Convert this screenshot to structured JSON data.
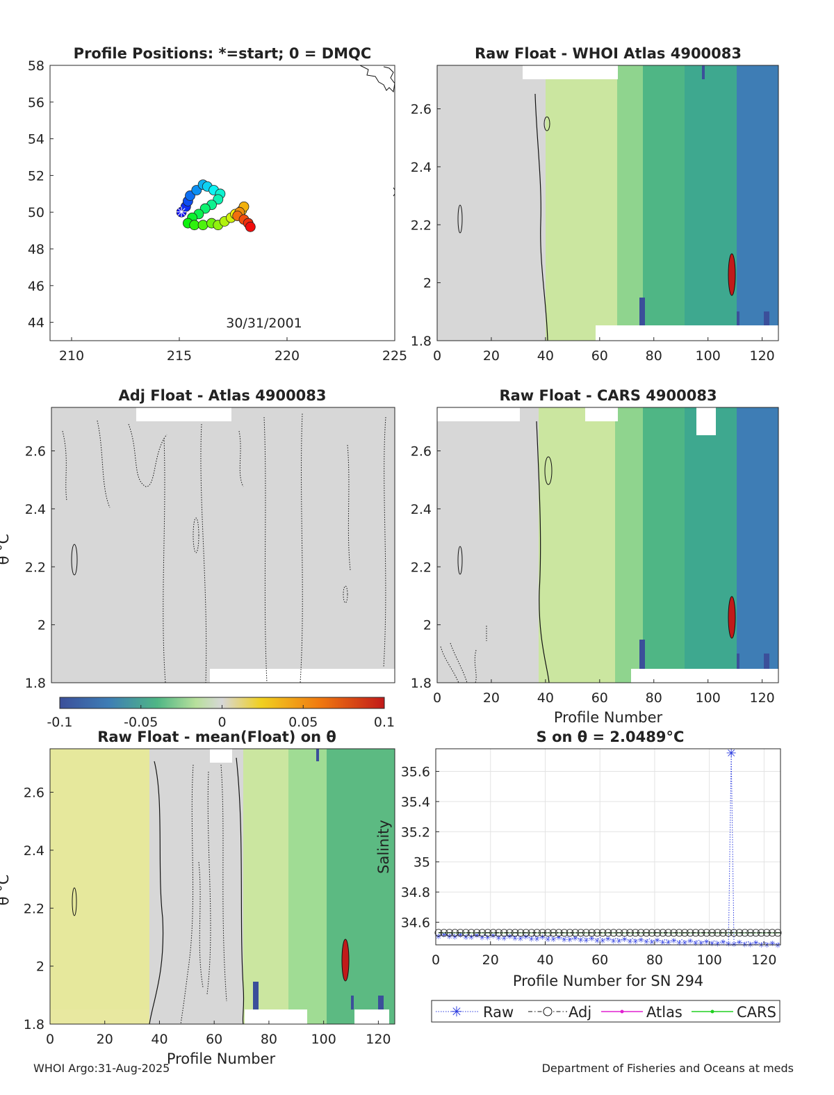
{
  "colors": {
    "gray_bg": "#d7d7d7",
    "light_green": "#cbe6a0",
    "mid_green": "#8fd48e",
    "green": "#4fb685",
    "blue": "#3e7db5",
    "dark_blue": "#3b4f9a",
    "pale_yellow": "#e6e89c",
    "red": "#c11a1a",
    "raw_line": "#2a3adf",
    "adj_line": "#111111",
    "atlas_line": "#e020d0",
    "cars_line": "#20d020"
  },
  "footer": {
    "left": "WHOI Argo:31-Aug-2025",
    "right": "Department of Fisheries and Oceans at meds"
  },
  "chart_data": [
    {
      "id": "positions",
      "type": "scatter",
      "title": "Profile Positions: *=start; 0 = DMQC",
      "annotation": "30/31/2001",
      "xlim": [
        209,
        225
      ],
      "ylim": [
        43,
        58
      ],
      "xticks": [
        "210",
        "215",
        "220",
        "225"
      ],
      "yticks": [
        "44",
        "46",
        "48",
        "50",
        "52",
        "54",
        "56",
        "58"
      ],
      "start": [
        215.1,
        50.0
      ],
      "track": [
        [
          215.1,
          50.0
        ],
        [
          215.3,
          50.3
        ],
        [
          215.4,
          50.6
        ],
        [
          215.5,
          50.9
        ],
        [
          215.8,
          51.2
        ],
        [
          216.1,
          51.5
        ],
        [
          216.3,
          51.4
        ],
        [
          216.6,
          51.2
        ],
        [
          216.9,
          51.0
        ],
        [
          216.8,
          50.7
        ],
        [
          216.5,
          50.4
        ],
        [
          216.2,
          50.2
        ],
        [
          215.9,
          49.9
        ],
        [
          215.6,
          49.7
        ],
        [
          215.4,
          49.4
        ],
        [
          215.7,
          49.3
        ],
        [
          216.1,
          49.3
        ],
        [
          216.5,
          49.4
        ],
        [
          216.8,
          49.3
        ],
        [
          217.1,
          49.5
        ],
        [
          217.4,
          49.7
        ],
        [
          217.6,
          49.9
        ],
        [
          217.9,
          50.1
        ],
        [
          218.0,
          50.3
        ],
        [
          217.8,
          50.0
        ],
        [
          217.7,
          49.8
        ],
        [
          218.0,
          49.6
        ],
        [
          218.2,
          49.4
        ],
        [
          218.3,
          49.2
        ]
      ]
    },
    {
      "id": "whoi",
      "type": "heatmap",
      "title": "Raw Float - WHOI Atlas  4900083",
      "xlim": [
        0,
        126
      ],
      "ylim": [
        1.8,
        2.75
      ],
      "xticks": [
        "0",
        "20",
        "40",
        "60",
        "80",
        "100",
        "120"
      ],
      "yticks": [
        "1.8",
        "2",
        "2.2",
        "2.4",
        "2.6"
      ]
    },
    {
      "id": "adj",
      "type": "heatmap",
      "title": "Adj Float - Atlas  4900083",
      "ylabel": "θ °C",
      "xlim": [
        0,
        126
      ],
      "ylim": [
        1.8,
        2.75
      ],
      "yticks": [
        "1.8",
        "2",
        "2.2",
        "2.4",
        "2.6"
      ]
    },
    {
      "id": "cars",
      "type": "heatmap",
      "title": "Raw Float - CARS  4900083",
      "xlabel": "Profile Number",
      "xlim": [
        0,
        126
      ],
      "ylim": [
        1.8,
        2.75
      ],
      "xticks": [
        "0",
        "20",
        "40",
        "60",
        "80",
        "100",
        "120"
      ],
      "yticks": [
        "1.8",
        "2",
        "2.2",
        "2.4",
        "2.6"
      ]
    },
    {
      "id": "colorbar",
      "type": "colorbar",
      "range": [
        -0.1,
        0.1
      ],
      "ticks": [
        "-0.1",
        "-0.05",
        "0",
        "0.05",
        "0.1"
      ]
    },
    {
      "id": "mean",
      "type": "heatmap",
      "title": "Raw Float - mean(Float) on θ",
      "ylabel": "θ °C",
      "xlabel": "Profile Number",
      "xlim": [
        0,
        126
      ],
      "ylim": [
        1.8,
        2.75
      ],
      "xticks": [
        "0",
        "20",
        "40",
        "60",
        "80",
        "100",
        "120"
      ],
      "yticks": [
        "1.8",
        "2",
        "2.2",
        "2.4",
        "2.6"
      ]
    },
    {
      "id": "salinity",
      "type": "line",
      "title": "S on θ = 2.0489°C",
      "ylabel": "Salinity",
      "xlabel": "Profile Number for SN 294",
      "xlim": [
        0,
        126
      ],
      "ylim": [
        34.45,
        35.75
      ],
      "xticks": [
        "0",
        "20",
        "40",
        "60",
        "80",
        "100",
        "120"
      ],
      "yticks": [
        "34.6",
        "34.8",
        "35",
        "35.2",
        "35.4",
        "35.6"
      ],
      "legend": [
        "Raw",
        "Adj",
        "Atlas",
        "CARS"
      ],
      "legend_position": "bottom",
      "series": [
        {
          "name": "Raw",
          "spike": [
            108,
            35.72
          ],
          "start": 34.52,
          "end": 34.46
        },
        {
          "name": "Adj",
          "value": 34.53
        },
        {
          "name": "Atlas",
          "value": 34.53
        },
        {
          "name": "CARS",
          "value": 34.53
        }
      ]
    }
  ]
}
